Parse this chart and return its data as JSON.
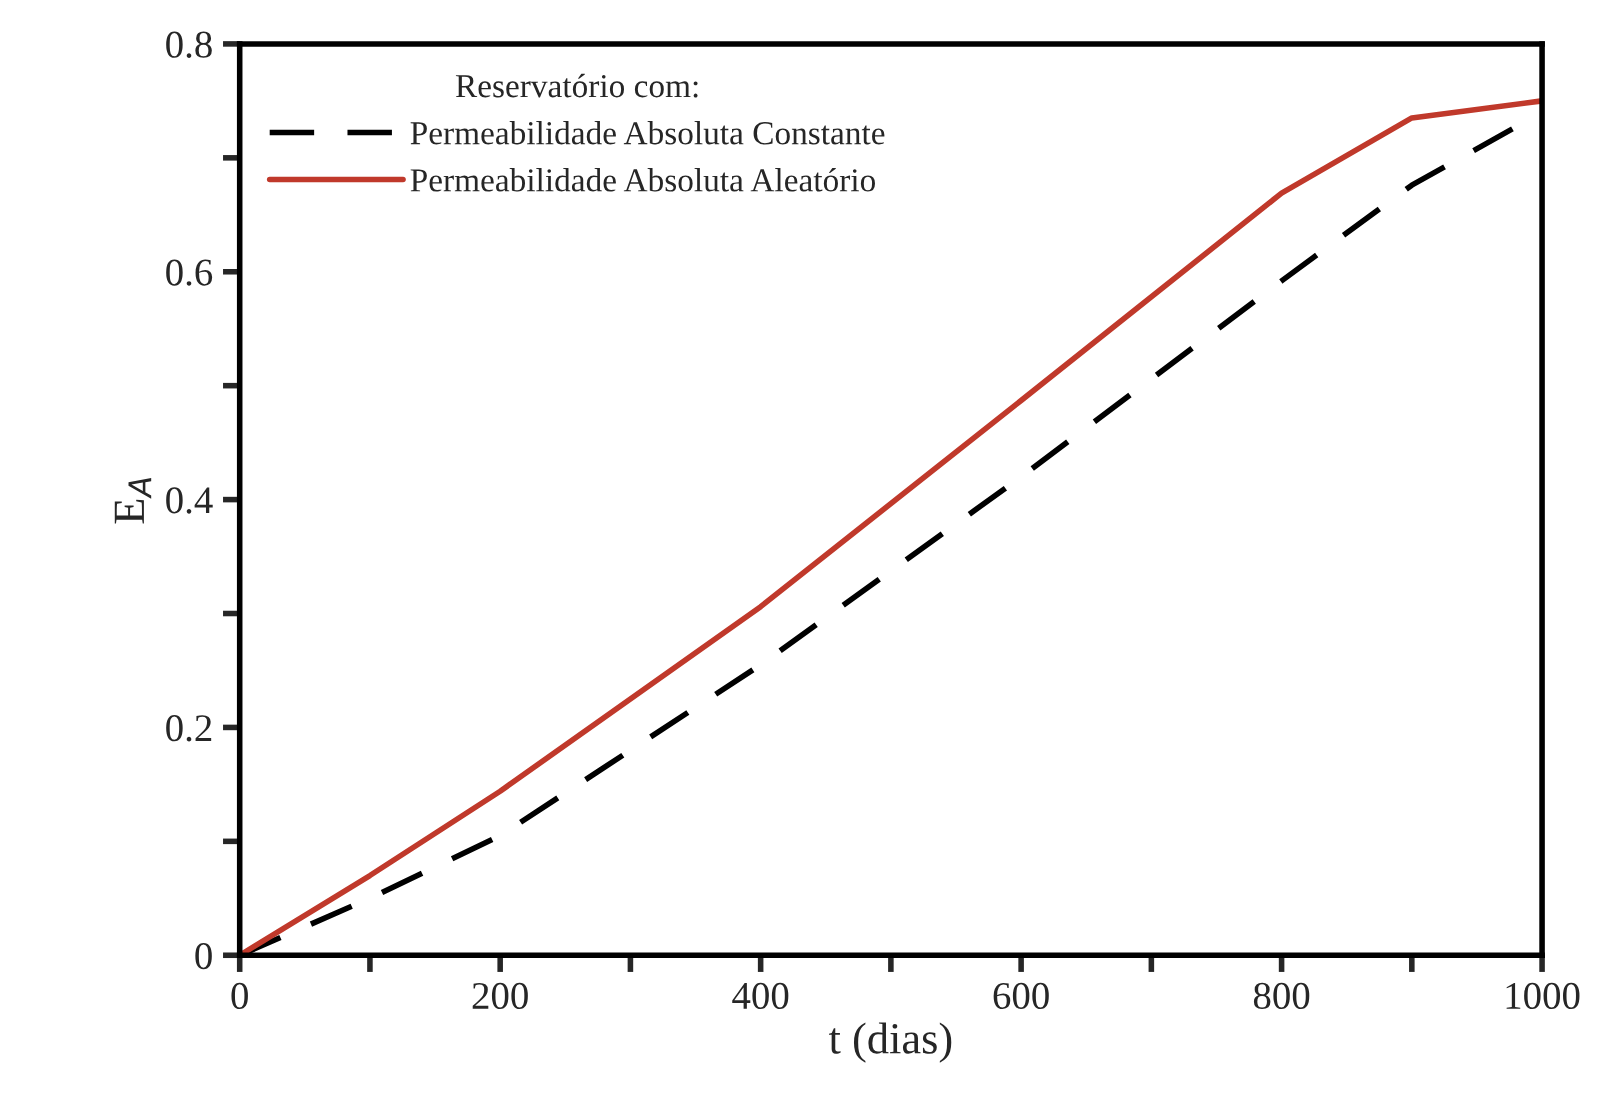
{
  "chart_data": {
    "type": "line",
    "xlabel": "t (dias)",
    "ylabel": "E$_{A}$",
    "legend_title": "Reservatório com:",
    "legend": "top left",
    "grid": false,
    "xlim": [
      0,
      1000
    ],
    "ylim": [
      0,
      0.8
    ],
    "xticks": [
      0,
      {
        "value": 100,
        "label": null
      },
      200,
      {
        "value": 300,
        "label": null
      },
      400,
      {
        "value": 500,
        "label": null
      },
      600,
      {
        "value": 700,
        "label": null
      },
      800,
      {
        "value": 900,
        "label": null
      },
      1000
    ],
    "yticks": [
      0,
      {
        "value": 0.1,
        "label": null
      },
      0.2,
      {
        "value": 0.3,
        "label": null
      },
      0.4,
      {
        "value": 0.5,
        "label": null
      },
      0.6,
      {
        "value": 0.7,
        "label": null
      },
      0.8
    ],
    "series": [
      {
        "name": "Permeabilidade Absoluta Constante",
        "color": "#000000",
        "line_style": "dashed",
        "x": [
          0,
          100,
          200,
          400,
          600,
          800,
          900,
          1000
        ],
        "values": [
          0,
          0.05,
          0.105,
          0.255,
          0.42,
          0.592,
          0.676,
          0.74
        ]
      },
      {
        "name": "Permeabilidade Absoluta Aleatório",
        "color": "#c0392b",
        "line_style": "solid",
        "x": [
          0,
          100,
          200,
          400,
          600,
          800,
          900,
          1000
        ],
        "values": [
          0,
          0.07,
          0.144,
          0.306,
          0.487,
          0.669,
          0.735,
          0.75
        ]
      }
    ]
  }
}
